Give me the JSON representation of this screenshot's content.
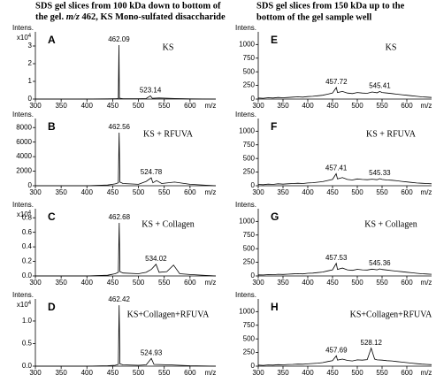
{
  "left_heading": {
    "line1": "SDS gel slices from 100 kDa down to bottom of",
    "line2_start": "the gel.",
    "line2_italic": "m/z",
    "line2_end": "462, KS Mono-sulfated disaccharide"
  },
  "right_heading": {
    "line1": "SDS gel slices from 150 kDa up to the",
    "line2": "bottom of the gel sample well"
  },
  "chart_data": [
    {
      "type": "line",
      "panel": "A",
      "sample": "KS",
      "y_label": "Intens.",
      "y_scale": "x10",
      "y_scale_exp": "4",
      "x_label": "m/z",
      "color": "#000000",
      "xlim": [
        300,
        650
      ],
      "xticks": [
        300,
        350,
        400,
        450,
        500,
        550,
        600
      ],
      "ylim": [
        0,
        3.7
      ],
      "yticks": [
        0,
        1,
        2,
        3
      ],
      "x": [
        300,
        380,
        440,
        455,
        461,
        462.09,
        463,
        470,
        500,
        515,
        523.14,
        527,
        540,
        570,
        600,
        650
      ],
      "values": [
        0,
        0,
        0.01,
        0.02,
        0.03,
        3.05,
        0.05,
        0.02,
        0.02,
        0.03,
        0.18,
        0.04,
        0.06,
        0.03,
        0.01,
        0
      ],
      "peak_labels": [
        462.09,
        523.14
      ]
    },
    {
      "type": "line",
      "panel": "B",
      "sample": "KS + RFUVA",
      "y_label": "Intens.",
      "x_label": "m/z",
      "color": "#000000",
      "xlim": [
        300,
        650
      ],
      "xticks": [
        300,
        350,
        400,
        450,
        500,
        550,
        600
      ],
      "ylim": [
        0,
        9000
      ],
      "yticks": [
        0,
        2000,
        4000,
        6000,
        8000
      ],
      "x": [
        300,
        400,
        440,
        455,
        461,
        462.56,
        464,
        470,
        500,
        515,
        524.78,
        528,
        535,
        545,
        570,
        600,
        650
      ],
      "values": [
        0,
        0,
        100,
        250,
        400,
        7300,
        500,
        300,
        200,
        600,
        1100,
        400,
        700,
        300,
        500,
        200,
        0
      ],
      "peak_labels": [
        462.56,
        524.78
      ]
    },
    {
      "type": "line",
      "panel": "C",
      "sample": "KS + Collagen",
      "y_label": "Intens.",
      "y_scale": "x10",
      "y_scale_exp": "4",
      "x_label": "m/z",
      "color": "#000000",
      "xlim": [
        300,
        650
      ],
      "xticks": [
        300,
        350,
        400,
        450,
        500,
        550,
        600
      ],
      "ylim": [
        0,
        0.9
      ],
      "yticks": [
        {
          "value": 0,
          "label": "0.0"
        },
        0.2,
        0.4,
        0.6,
        0.8
      ],
      "x": [
        300,
        400,
        440,
        455,
        461,
        462.68,
        464,
        470,
        500,
        515,
        525,
        534.02,
        540,
        555,
        568,
        580,
        600,
        650
      ],
      "values": [
        0,
        0,
        0.01,
        0.03,
        0.05,
        0.73,
        0.06,
        0.04,
        0.03,
        0.05,
        0.09,
        0.16,
        0.05,
        0.06,
        0.15,
        0.03,
        0.02,
        0
      ],
      "peak_labels": [
        462.68,
        534.02
      ]
    },
    {
      "type": "line",
      "panel": "D",
      "sample": "KS+Collagen+RFUVA",
      "y_label": "Intens.",
      "y_scale": "x10",
      "y_scale_exp": "4",
      "x_label": "m/z",
      "color": "#000000",
      "xlim": [
        300,
        650
      ],
      "xticks": [
        300,
        350,
        400,
        450,
        500,
        550,
        600
      ],
      "ylim": [
        0,
        1.45
      ],
      "yticks": [
        {
          "value": 0,
          "label": "0.0"
        },
        0.5,
        {
          "value": 1,
          "label": "1.0"
        }
      ],
      "x": [
        300,
        400,
        440,
        455,
        461,
        462.42,
        464,
        470,
        500,
        515,
        524.93,
        530,
        560,
        600,
        650
      ],
      "values": [
        0,
        0,
        0.01,
        0.02,
        0.04,
        1.35,
        0.05,
        0.03,
        0.02,
        0.03,
        0.17,
        0.04,
        0.03,
        0.01,
        0
      ],
      "peak_labels": [
        462.42,
        524.93
      ]
    },
    {
      "type": "line",
      "panel": "E",
      "sample": "KS",
      "y_label": "Intens.",
      "x_label": "m/z",
      "color": "#000000",
      "xlim": [
        300,
        650
      ],
      "xticks": [
        300,
        350,
        400,
        450,
        500,
        550,
        600
      ],
      "ylim": [
        0,
        1200
      ],
      "yticks": [
        0,
        250,
        500,
        750,
        1000
      ],
      "x": [
        300,
        310,
        320,
        330,
        340,
        350,
        360,
        370,
        380,
        390,
        400,
        410,
        420,
        430,
        440,
        450,
        457.72,
        460,
        470,
        480,
        490,
        500,
        510,
        520,
        530,
        540,
        545.41,
        550,
        560,
        570,
        580,
        590,
        600,
        610,
        620,
        630,
        640,
        650
      ],
      "values": [
        20,
        15,
        25,
        20,
        30,
        25,
        30,
        35,
        40,
        35,
        45,
        50,
        60,
        70,
        90,
        110,
        210,
        120,
        140,
        110,
        100,
        120,
        110,
        105,
        130,
        115,
        140,
        120,
        110,
        100,
        90,
        80,
        70,
        60,
        50,
        40,
        35,
        30
      ],
      "peak_labels": [
        457.72,
        545.41
      ]
    },
    {
      "type": "line",
      "panel": "F",
      "sample": "KS + RFUVA",
      "y_label": "Intens.",
      "x_label": "m/z",
      "color": "#000000",
      "xlim": [
        300,
        650
      ],
      "xticks": [
        300,
        350,
        400,
        450,
        500,
        550,
        600
      ],
      "ylim": [
        0,
        1200
      ],
      "yticks": [
        0,
        250,
        500,
        750,
        1000
      ],
      "x": [
        300,
        310,
        320,
        330,
        340,
        350,
        360,
        370,
        380,
        390,
        400,
        410,
        420,
        430,
        440,
        450,
        457.41,
        460,
        470,
        480,
        490,
        500,
        510,
        520,
        530,
        540,
        545.33,
        550,
        560,
        570,
        580,
        590,
        600,
        610,
        620,
        630,
        640,
        650
      ],
      "values": [
        25,
        20,
        30,
        25,
        35,
        30,
        35,
        40,
        45,
        40,
        50,
        55,
        65,
        75,
        95,
        115,
        220,
        125,
        150,
        115,
        105,
        125,
        115,
        110,
        120,
        110,
        130,
        115,
        105,
        100,
        90,
        80,
        70,
        60,
        50,
        45,
        40,
        35
      ],
      "peak_labels": [
        457.41,
        545.33
      ]
    },
    {
      "type": "line",
      "panel": "G",
      "sample": "KS + Collagen",
      "y_label": "Intens.",
      "x_label": "m/z",
      "color": "#000000",
      "xlim": [
        300,
        650
      ],
      "xticks": [
        300,
        350,
        400,
        450,
        500,
        550,
        600
      ],
      "ylim": [
        0,
        1200
      ],
      "yticks": [
        0,
        250,
        500,
        750,
        1000
      ],
      "x": [
        300,
        310,
        320,
        330,
        340,
        350,
        360,
        370,
        380,
        390,
        400,
        410,
        420,
        430,
        440,
        450,
        457.53,
        460,
        470,
        480,
        490,
        500,
        510,
        520,
        530,
        540,
        545.36,
        550,
        560,
        570,
        580,
        590,
        600,
        610,
        620,
        630,
        640,
        650
      ],
      "values": [
        20,
        18,
        25,
        22,
        30,
        28,
        32,
        38,
        42,
        38,
        48,
        52,
        62,
        72,
        92,
        112,
        230,
        120,
        145,
        112,
        102,
        122,
        112,
        108,
        125,
        112,
        130,
        118,
        108,
        98,
        88,
        78,
        68,
        58,
        48,
        40,
        35,
        30
      ],
      "peak_labels": [
        457.53,
        545.36
      ]
    },
    {
      "type": "line",
      "panel": "H",
      "sample": "KS+Collagen+RFUVA",
      "y_label": "Intens.",
      "x_label": "m/z",
      "color": "#000000",
      "xlim": [
        300,
        650
      ],
      "xticks": [
        300,
        350,
        400,
        450,
        500,
        550,
        600
      ],
      "ylim": [
        0,
        1200
      ],
      "yticks": [
        0,
        250,
        500,
        750,
        1000
      ],
      "x": [
        300,
        310,
        320,
        330,
        340,
        350,
        360,
        370,
        380,
        390,
        400,
        410,
        420,
        430,
        440,
        450,
        457.69,
        460,
        470,
        480,
        490,
        500,
        510,
        520,
        528.12,
        535,
        540,
        550,
        560,
        570,
        580,
        590,
        600,
        610,
        620,
        630,
        640,
        650
      ],
      "values": [
        20,
        15,
        22,
        20,
        28,
        25,
        30,
        32,
        38,
        35,
        42,
        48,
        55,
        65,
        85,
        100,
        190,
        110,
        130,
        105,
        95,
        115,
        110,
        120,
        330,
        130,
        115,
        110,
        100,
        95,
        85,
        75,
        65,
        55,
        45,
        38,
        32,
        28
      ],
      "peak_labels": [
        457.69,
        528.12
      ]
    }
  ]
}
